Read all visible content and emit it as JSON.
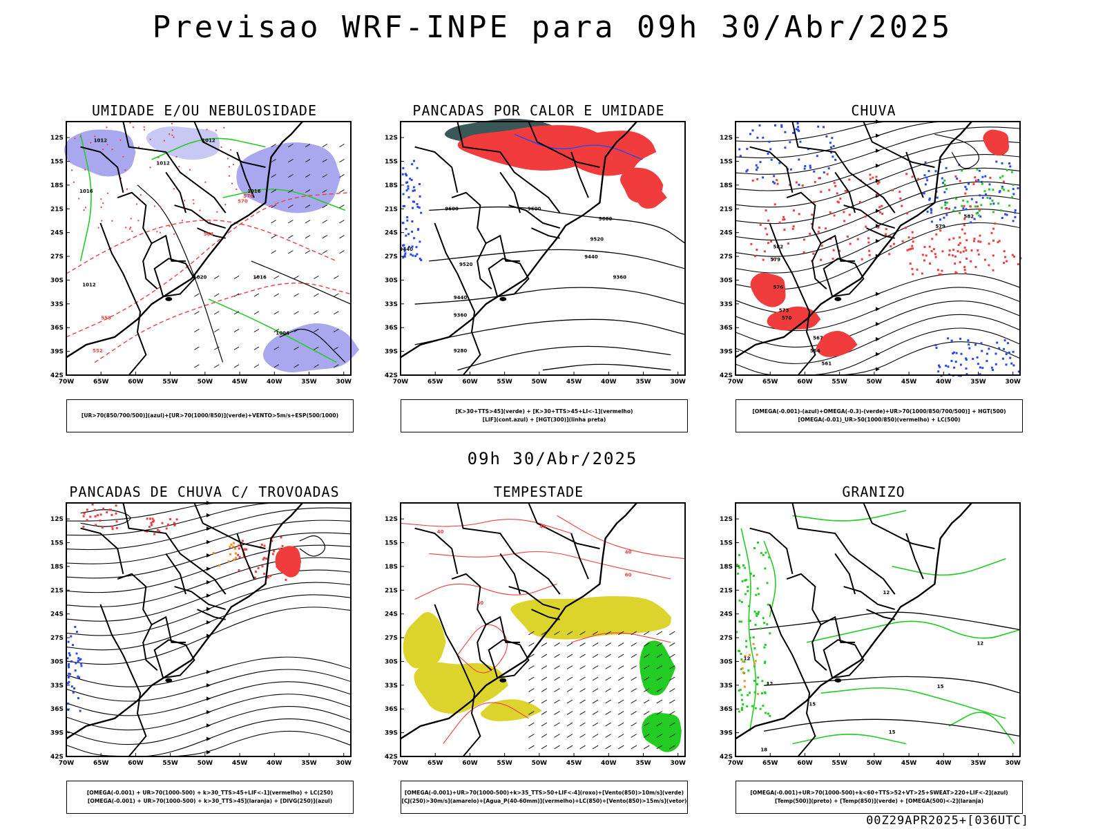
{
  "title": "Previsao WRF-INPE  para 09h 30/Abr/2025",
  "middle_label": "09h 30/Abr/2025",
  "footer": "00Z29APR2025+[036UTC]",
  "axes": {
    "lat_labels": [
      "12S",
      "15S",
      "18S",
      "21S",
      "24S",
      "27S",
      "30S",
      "33S",
      "36S",
      "39S",
      "42S"
    ],
    "lon_labels": [
      "70W",
      "65W",
      "60W",
      "55W",
      "50W",
      "45W",
      "40W",
      "35W",
      "30W"
    ]
  },
  "panels": [
    {
      "title": "UMIDADE E/OU NEBULOSIDADE",
      "legend": [
        "[UR>70(850/700/500)](azul)+[UR>70(1000/850)](verde)+VENTO>5m/s+ESP(500/1000)"
      ],
      "contour_labels": [
        "1012",
        "1012",
        "1012",
        "1016",
        "1016",
        "1020",
        "1012",
        "1004",
        "576",
        "570",
        "564",
        "558",
        "552",
        "1016"
      ]
    },
    {
      "title": "PANCADAS POR CALOR E UMIDADE",
      "legend": [
        "[K>30+TTS>45](verde)  +  [K>30+TTS>45+LI<-1](vermelho)",
        "[LIF](cont.azul)  +  [HGT(300)](linha preta)"
      ],
      "contour_labels": [
        "9600",
        "9600",
        "9600",
        "9520",
        "9520",
        "9440",
        "9440",
        "9360",
        "9360",
        "9280",
        "9440"
      ]
    },
    {
      "title": "CHUVA",
      "legend": [
        "[OMEGA(-0.001)-(azul)+OMEGA(-0.3)-(verde)+UR>70(1000/850/700/500)]  +  HGT(500)",
        "[OMEGA(-0.01)_UR>50(1000/850)(vermelho)  +  LC(500)"
      ],
      "contour_labels": [
        "582",
        "579",
        "576",
        "573",
        "570",
        "567",
        "564",
        "561",
        "579",
        "582"
      ]
    },
    {
      "title": "PANCADAS DE CHUVA C/ TROVOADAS",
      "legend": [
        "[OMEGA(-0.001)  +  UR>70(1000-500)  +  k>30_TTS>45+LIF<-1](vermelho)  +  LC(250)",
        "[OMEGA(-0.001)  +  UR>70(1000-500)  +  k>30_TTS>45](laranja)  +  [DIVG(250)](azul)"
      ],
      "contour_labels": []
    },
    {
      "title": "TEMPESTADE",
      "legend": [
        "[OMEGA(-0.001)+UR>70(1000-500)+k>35_TTS>50+LIF<-4](roxo)+[Vento(850)>10m/s](verde)",
        "[CJ(250)>30m/s](amarelo)+[Agua_P(40-60mm)](vermelho)+LC(850)+[Vento(850)>15m/s](vetor)"
      ],
      "contour_labels": [
        "40",
        "40",
        "40",
        "40",
        "60"
      ]
    },
    {
      "title": "GRANIZO",
      "legend": [
        "[OMEGA(-0.001)+UR>70(1000-500)+k<60+TTS>52+VT>25+SWEAT>220+LIF<-2](azul)",
        "[Temp(500)](preto)  +  [Temp(850)](verde)  +  [OMEGA(500)<-2](laranja)"
      ],
      "contour_labels": [
        "12",
        "12",
        "12",
        "15",
        "15",
        "15",
        "18",
        "12"
      ]
    }
  ],
  "colors": {
    "red": "#f03c3c",
    "blue": "#2847f0",
    "green": "#22cc22",
    "lavender": "#a9a8ee",
    "lightblue": "#c8c8f4",
    "yellow": "#dcd42c",
    "darkslate": "#3a5858",
    "orange": "#ff8c1a"
  }
}
